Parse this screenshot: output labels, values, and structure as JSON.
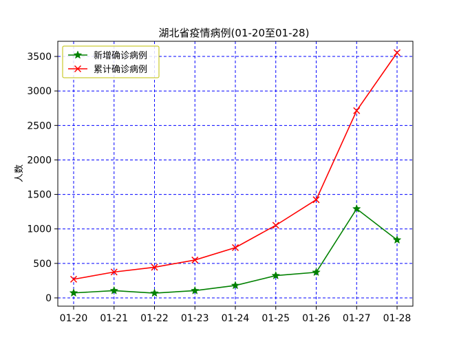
{
  "chart_data": {
    "type": "line",
    "title": "湖北省疫情病例(01-20至01-28)",
    "xlabel": "",
    "ylabel": "人数",
    "categories": [
      "01-20",
      "01-21",
      "01-22",
      "01-23",
      "01-24",
      "01-25",
      "01-26",
      "01-27",
      "01-28"
    ],
    "ylim": [
      -120,
      3720
    ],
    "yticks": [
      0,
      500,
      1000,
      1500,
      2000,
      2500,
      3000,
      3500
    ],
    "grid": true,
    "legend_position": "top-left",
    "series": [
      {
        "name": "新增确诊病例",
        "color": "#008000",
        "marker": "star",
        "values": [
          72,
          105,
          69,
          105,
          180,
          323,
          371,
          1291,
          840
        ]
      },
      {
        "name": "累计确诊病例",
        "color": "#ff0000",
        "marker": "x",
        "values": [
          270,
          375,
          444,
          549,
          729,
          1052,
          1423,
          2714,
          3554
        ]
      }
    ],
    "colors": {
      "grid": "#0000ff",
      "legend_border": "#bfbf00"
    }
  }
}
